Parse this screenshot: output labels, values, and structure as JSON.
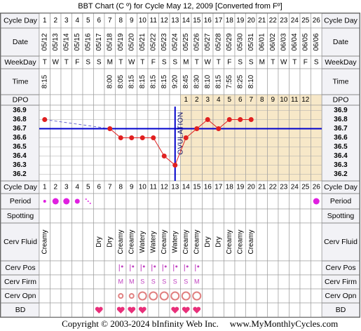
{
  "chart_data": {
    "type": "line",
    "title": "BBT Chart (C º) for Cycle May 12, 2009  [Converted from Fº]",
    "categories": [
      1,
      2,
      3,
      4,
      5,
      6,
      7,
      8,
      9,
      10,
      11,
      12,
      13,
      14,
      15,
      16,
      17,
      18,
      19,
      20,
      21,
      22,
      23,
      24,
      25,
      26
    ],
    "values": [
      36.8,
      null,
      null,
      null,
      null,
      null,
      36.7,
      36.6,
      36.6,
      36.6,
      36.6,
      36.4,
      36.3,
      36.6,
      36.7,
      36.8,
      36.7,
      36.8,
      36.8,
      36.8,
      null,
      null,
      null,
      null,
      null,
      null
    ],
    "color": "#e02020",
    "ylim": [
      36.15,
      36.95
    ],
    "yticks": [
      36.9,
      36.8,
      36.7,
      36.6,
      36.5,
      36.4,
      36.3,
      36.2
    ],
    "grid": true,
    "coverline": 36.7,
    "coverline_color": "#0000cc",
    "ovulation_day": 13,
    "ovulation_label": "OVULATION"
  },
  "labels": {
    "cycle_day": "Cycle Day",
    "date": "Date",
    "weekday": "WeekDay",
    "time": "Time",
    "dpo": "DPO",
    "period": "Period",
    "spotting": "Spotting",
    "cerv_fluid": "Cerv Fluid",
    "cerv_pos": "Cerv Pos",
    "cerv_firm": "Cerv Firm",
    "cerv_opn": "Cerv Opn",
    "bd": "BD"
  },
  "dates": [
    "05/12",
    "05/13",
    "05/14",
    "05/15",
    "05/16",
    "05/17",
    "05/18",
    "05/19",
    "05/20",
    "05/21",
    "05/22",
    "05/23",
    "05/24",
    "05/25",
    "05/26",
    "05/27",
    "05/28",
    "05/29",
    "05/30",
    "05/31",
    "06/01",
    "06/02",
    "06/03",
    "06/04",
    "06/05",
    "06/06"
  ],
  "weekdays": [
    "T",
    "W",
    "T",
    "F",
    "S",
    "S",
    "M",
    "T",
    "W",
    "T",
    "F",
    "S",
    "S",
    "M",
    "T",
    "W",
    "T",
    "F",
    "S",
    "S",
    "M",
    "T",
    "W",
    "T",
    "F",
    "S"
  ],
  "times": [
    "8:15",
    null,
    null,
    null,
    null,
    null,
    "8:00",
    "8:05",
    "8:15",
    "8:15",
    "8:15",
    "8:15",
    "9:20",
    "8:45",
    "8:30",
    "8:10",
    "8:15",
    "7:55",
    "8:25",
    "8:10",
    null,
    null,
    null,
    null,
    null,
    null
  ],
  "dpo": [
    null,
    null,
    null,
    null,
    null,
    null,
    null,
    null,
    null,
    null,
    null,
    null,
    null,
    1,
    2,
    3,
    4,
    5,
    6,
    7,
    8,
    9,
    10,
    11,
    12,
    null
  ],
  "period": [
    "light",
    "heavy",
    "heavy",
    "medium",
    "spotting",
    null,
    null,
    null,
    null,
    null,
    null,
    null,
    null,
    null,
    null,
    null,
    null,
    null,
    null,
    null,
    null,
    null,
    null,
    null,
    null,
    "heavy"
  ],
  "cerv_fluid": [
    "Creamy",
    null,
    null,
    null,
    null,
    "Dry",
    "Dry",
    "Creamy",
    "Creamy",
    "Watery",
    "Watery",
    "Creamy",
    "Watery",
    "Creamy",
    "Creamy",
    "Dry",
    "Dry",
    "Creamy",
    "Creamy",
    "Creamy",
    null,
    null,
    null,
    null,
    null,
    null
  ],
  "cerv_pos": [
    null,
    null,
    null,
    null,
    null,
    null,
    null,
    "medium",
    "medium",
    "medium",
    "medium",
    "medium",
    "medium",
    "medium",
    "medium",
    null,
    null,
    null,
    null,
    null,
    null,
    null,
    null,
    null,
    null,
    null
  ],
  "cerv_firm": [
    null,
    null,
    null,
    null,
    null,
    null,
    null,
    "M",
    "M",
    "S",
    "S",
    "S",
    "S",
    "S",
    "M",
    null,
    null,
    null,
    null,
    null,
    null,
    null,
    null,
    null,
    null,
    null
  ],
  "cerv_opn": [
    null,
    null,
    null,
    null,
    null,
    null,
    null,
    "small",
    "small",
    "large",
    "large",
    "large",
    "large",
    "large",
    "large",
    null,
    null,
    null,
    null,
    null,
    null,
    null,
    null,
    null,
    null,
    null
  ],
  "bd": [
    null,
    null,
    null,
    null,
    null,
    true,
    null,
    true,
    true,
    true,
    null,
    null,
    true,
    true,
    true,
    null,
    null,
    null,
    null,
    null,
    null,
    null,
    null,
    null,
    null,
    null
  ],
  "footer": {
    "copyright": "Copyright © 2003-2024 bInfinity Web Inc.",
    "site": "www.MyMonthlyCycles.com"
  }
}
